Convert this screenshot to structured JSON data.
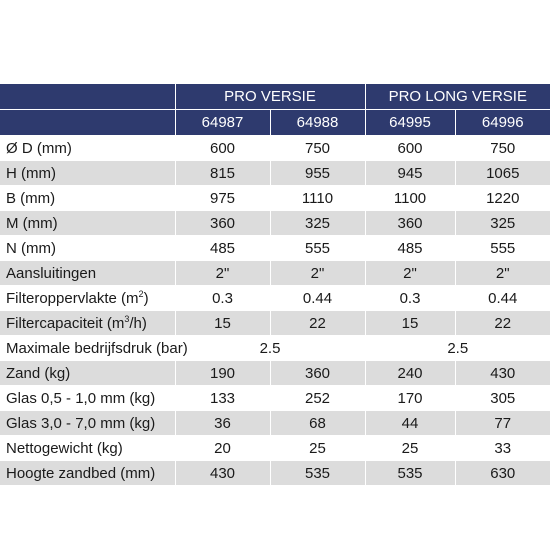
{
  "header": {
    "groups": [
      "PRO VERSIE",
      "PRO LONG VERSIE"
    ],
    "codes": [
      "64987",
      "64988",
      "64995",
      "64996"
    ]
  },
  "rows": [
    {
      "label": "Ø D (mm)",
      "values": [
        "600",
        "750",
        "600",
        "750"
      ]
    },
    {
      "label": "H (mm)",
      "values": [
        "815",
        "955",
        "945",
        "1065"
      ]
    },
    {
      "label": "B (mm)",
      "values": [
        "975",
        "1110",
        "1100",
        "1220"
      ]
    },
    {
      "label": "M (mm)",
      "values": [
        "360",
        "325",
        "360",
        "325"
      ]
    },
    {
      "label": "N (mm)",
      "values": [
        "485",
        "555",
        "485",
        "555"
      ]
    },
    {
      "label": "Aansluitingen",
      "values": [
        "2\"",
        "2\"",
        "2\"",
        "2\""
      ]
    },
    {
      "label": "Filteroppervlakte (m",
      "sup": "2",
      "suffix": ")",
      "values": [
        "0.3",
        "0.44",
        "0.3",
        "0.44"
      ]
    },
    {
      "label": "Filtercapaciteit (m",
      "sup": "3",
      "suffix": "/h)",
      "values": [
        "15",
        "22",
        "15",
        "22"
      ]
    },
    {
      "label": "Maximale bedrijfsdruk (bar)",
      "merged": [
        "2.5",
        "2.5"
      ]
    },
    {
      "label": "Zand (kg)",
      "values": [
        "190",
        "360",
        "240",
        "430"
      ]
    },
    {
      "label": "Glas 0,5 - 1,0 mm (kg)",
      "values": [
        "133",
        "252",
        "170",
        "305"
      ]
    },
    {
      "label": "Glas 3,0 - 7,0 mm (kg)",
      "values": [
        "36",
        "68",
        "44",
        "77"
      ]
    },
    {
      "label": "Nettogewicht (kg)",
      "values": [
        "20",
        "25",
        "25",
        "33"
      ]
    },
    {
      "label": "Hoogte zandbed (mm)",
      "values": [
        "430",
        "535",
        "535",
        "630"
      ]
    }
  ],
  "colors": {
    "header_bg": "#2e3a6e",
    "stripe": "#dcdcdc"
  }
}
